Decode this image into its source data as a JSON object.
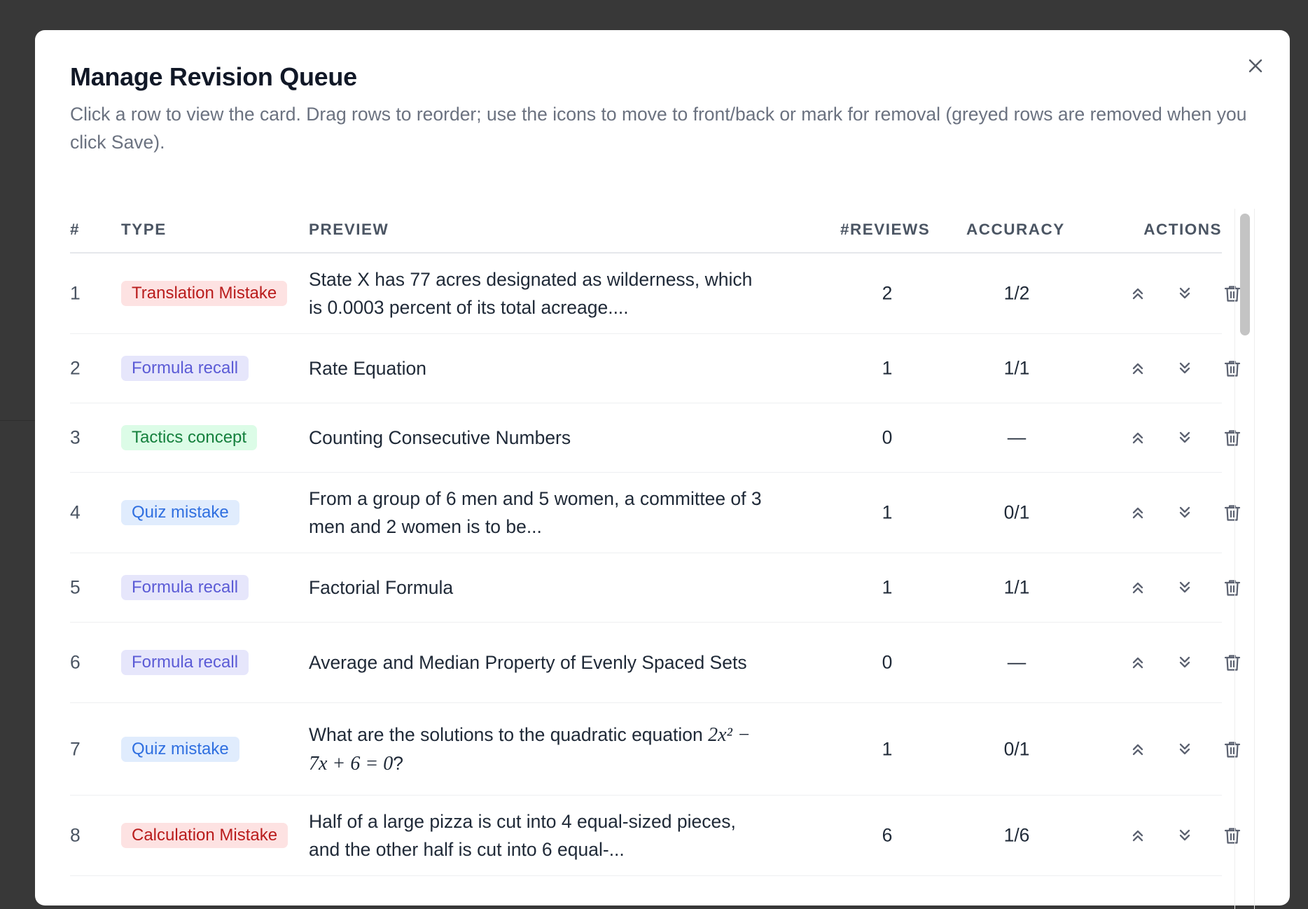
{
  "modal": {
    "title": "Manage Revision Queue",
    "subtitle": "Click a row to view the card. Drag rows to reorder; use the icons to move to front/back or mark for removal (greyed rows are removed when you click Save).",
    "close_icon": "close-icon"
  },
  "table": {
    "headers": {
      "num": "#",
      "type": "TYPE",
      "preview": "PREVIEW",
      "reviews": "#REVIEWS",
      "accuracy": "ACCURACY",
      "actions": "ACTIONS"
    },
    "badge_colors": {
      "Translation Mistake": {
        "bg": "#fde2e2",
        "fg": "#b91c1c"
      },
      "Calculation Mistake": {
        "bg": "#fde2e2",
        "fg": "#b91c1c"
      },
      "Formula recall": {
        "bg": "#e6e6fb",
        "fg": "#5b5bd6"
      },
      "Tactics concept": {
        "bg": "#dcfce7",
        "fg": "#15803d"
      },
      "Quiz mistake": {
        "bg": "#e0ecfd",
        "fg": "#2f6fe0"
      }
    },
    "rows": [
      {
        "num": "1",
        "type": "Translation Mistake",
        "preview": "State X has 77 acres designated as wilderness, which is 0.0003 percent of its total acreage....",
        "reviews": "2",
        "accuracy": "1/2"
      },
      {
        "num": "2",
        "type": "Formula recall",
        "preview": "Rate Equation",
        "reviews": "1",
        "accuracy": "1/1"
      },
      {
        "num": "3",
        "type": "Tactics concept",
        "preview": "Counting Consecutive Numbers",
        "reviews": "0",
        "accuracy": "—"
      },
      {
        "num": "4",
        "type": "Quiz mistake",
        "preview": "From a group of 6 men and 5 women, a committee of 3 men and 2 women is to be...",
        "reviews": "1",
        "accuracy": "0/1"
      },
      {
        "num": "5",
        "type": "Formula recall",
        "preview": "Factorial Formula",
        "reviews": "1",
        "accuracy": "1/1"
      },
      {
        "num": "6",
        "type": "Formula recall",
        "preview": "Average and Median Property of Evenly Spaced Sets",
        "reviews": "0",
        "accuracy": "—"
      },
      {
        "num": "7",
        "type": "Quiz mistake",
        "preview": "What are the solutions to the quadratic equation ",
        "preview_math": "2x² − 7x + 6 = 0",
        "preview_end": "?",
        "reviews": "1",
        "accuracy": "0/1"
      },
      {
        "num": "8",
        "type": "Calculation Mistake",
        "preview": "Half of a large pizza is cut into 4 equal-sized pieces, and the other half is cut into 6 equal-...",
        "reviews": "6",
        "accuracy": "1/6"
      }
    ],
    "row_heights": null,
    "action_icons": [
      "move-to-front-icon",
      "move-to-back-icon",
      "trash-icon"
    ]
  }
}
